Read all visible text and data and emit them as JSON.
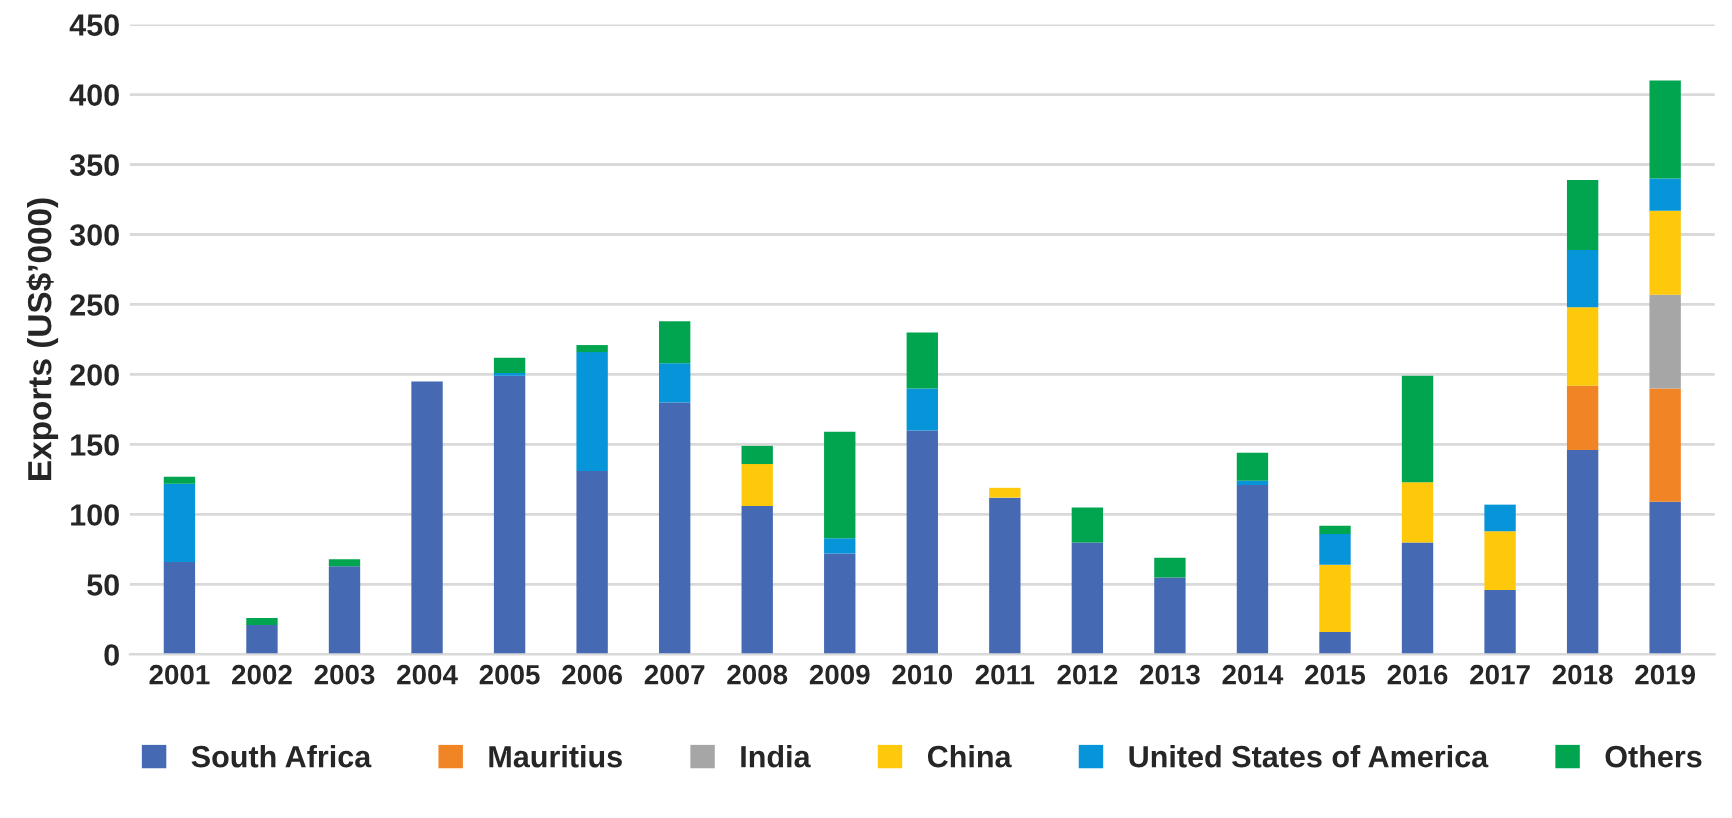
{
  "chart_data": {
    "type": "bar",
    "stacked": true,
    "ylabel": "Exports (US$’000)",
    "categories": [
      "2001",
      "2002",
      "2003",
      "2004",
      "2005",
      "2006",
      "2007",
      "2008",
      "2009",
      "2010",
      "2011",
      "2012",
      "2013",
      "2014",
      "2015",
      "2016",
      "2017",
      "2018",
      "2019"
    ],
    "series": [
      {
        "name": "South Africa",
        "color": "#4569b2",
        "values": [
          66,
          21,
          63,
          195,
          199,
          131,
          180,
          106,
          72,
          160,
          112,
          80,
          55,
          121,
          16,
          80,
          46,
          146,
          109
        ]
      },
      {
        "name": "Mauritius",
        "color": "#f18526",
        "values": [
          null,
          null,
          null,
          null,
          null,
          null,
          null,
          null,
          null,
          null,
          null,
          null,
          null,
          null,
          null,
          null,
          null,
          46,
          81
        ]
      },
      {
        "name": "India",
        "color": "#a6a6a6",
        "values": [
          null,
          null,
          null,
          null,
          null,
          null,
          null,
          null,
          null,
          null,
          null,
          null,
          null,
          null,
          null,
          null,
          null,
          null,
          67
        ]
      },
      {
        "name": "China",
        "color": "#fec90a",
        "values": [
          null,
          null,
          null,
          null,
          null,
          null,
          null,
          30,
          null,
          null,
          7,
          null,
          null,
          null,
          48,
          43,
          42,
          56,
          60
        ]
      },
      {
        "name": "United States of America",
        "color": "#0595d8",
        "values": [
          56,
          null,
          null,
          null,
          2,
          85,
          28,
          null,
          11,
          30,
          null,
          null,
          null,
          3,
          22,
          null,
          19,
          41,
          23
        ]
      },
      {
        "name": "Others",
        "color": "#01a550",
        "values": [
          5,
          5,
          5,
          null,
          11,
          5,
          30,
          13,
          76,
          40,
          null,
          25,
          14,
          20,
          6,
          76,
          null,
          50,
          70
        ]
      }
    ],
    "ylim": [
      0,
      450
    ],
    "yticks": [
      0,
      50,
      100,
      150,
      200,
      250,
      300,
      350,
      400,
      450
    ],
    "grid": "y",
    "legend": "bottom"
  }
}
